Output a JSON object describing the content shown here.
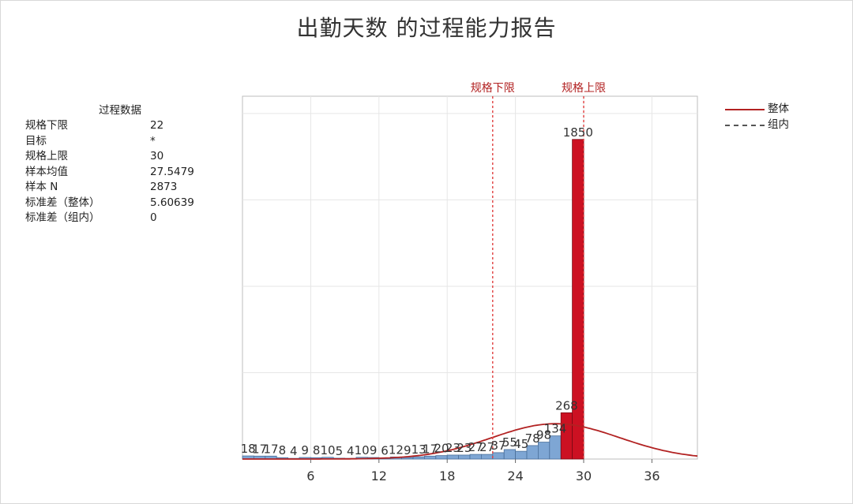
{
  "title": "出勤天数 的过程能力报告",
  "process_data": {
    "header": "过程数据",
    "rows": [
      {
        "label": "规格下限",
        "value": "22"
      },
      {
        "label": "目标",
        "value": "*"
      },
      {
        "label": "规格上限",
        "value": "30"
      },
      {
        "label": "样本均值",
        "value": "27.5479"
      },
      {
        "label": "样本 N",
        "value": "2873"
      },
      {
        "label": "标准差（整体）",
        "value": "5.60639"
      },
      {
        "label": "标准差（组内）",
        "value": "0"
      }
    ]
  },
  "legend": {
    "overall": "整体",
    "within": "组内"
  },
  "colors": {
    "in_spec_bar": "#7ea6d4",
    "out_spec_bar": "#cc1122",
    "curve": "#b22222",
    "spec_line": "#e04040",
    "spec_label": "#b22222"
  },
  "chart_data": {
    "type": "bar",
    "title": "出勤天数 的过程能力报告",
    "xlim": [
      0,
      40
    ],
    "ylim": [
      0,
      2100
    ],
    "xticks": [
      6,
      12,
      18,
      24,
      30,
      36
    ],
    "bin_width": 1,
    "spec_limits": {
      "lsl": {
        "value": 22,
        "label": "规格下限"
      },
      "usl": {
        "value": 30,
        "label": "规格上限"
      }
    },
    "bins": [
      {
        "x0": 0,
        "x1": 1,
        "value": 18,
        "label": "18"
      },
      {
        "x0": 1,
        "x1": 2,
        "value": 17,
        "label": "17"
      },
      {
        "x0": 2,
        "x1": 3,
        "value": 17,
        "label": "17"
      },
      {
        "x0": 3,
        "x1": 4,
        "value": 8,
        "label": "8"
      },
      {
        "x0": 4,
        "x1": 5,
        "value": 4,
        "label": "4"
      },
      {
        "x0": 5,
        "x1": 6,
        "value": 9,
        "label": "9"
      },
      {
        "x0": 6,
        "x1": 7,
        "value": 8,
        "label": "8"
      },
      {
        "x0": 7,
        "x1": 8,
        "value": 10,
        "label": "10"
      },
      {
        "x0": 8,
        "x1": 9,
        "value": 5,
        "label": "5"
      },
      {
        "x0": 9,
        "x1": 10,
        "value": 4,
        "label": "4"
      },
      {
        "x0": 10,
        "x1": 11,
        "value": 10,
        "label": "10"
      },
      {
        "x0": 11,
        "x1": 12,
        "value": 9,
        "label": "9"
      },
      {
        "x0": 12,
        "x1": 13,
        "value": 6,
        "label": "6"
      },
      {
        "x0": 13,
        "x1": 14,
        "value": 12,
        "label": "12"
      },
      {
        "x0": 14,
        "x1": 15,
        "value": 9,
        "label": "9"
      },
      {
        "x0": 15,
        "x1": 16,
        "value": 13,
        "label": "13"
      },
      {
        "x0": 16,
        "x1": 17,
        "value": 17,
        "label": "17"
      },
      {
        "x0": 17,
        "x1": 18,
        "value": 20,
        "label": "20"
      },
      {
        "x0": 18,
        "x1": 19,
        "value": 23,
        "label": "23"
      },
      {
        "x0": 19,
        "x1": 20,
        "value": 23,
        "label": "23"
      },
      {
        "x0": 20,
        "x1": 21,
        "value": 27,
        "label": "27"
      },
      {
        "x0": 21,
        "x1": 22,
        "value": 27,
        "label": "27"
      },
      {
        "x0": 22,
        "x1": 23,
        "value": 37,
        "label": "37"
      },
      {
        "x0": 23,
        "x1": 24,
        "value": 55,
        "label": "55"
      },
      {
        "x0": 24,
        "x1": 25,
        "value": 45,
        "label": "45"
      },
      {
        "x0": 25,
        "x1": 26,
        "value": 78,
        "label": "78"
      },
      {
        "x0": 26,
        "x1": 27,
        "value": 98,
        "label": "98"
      },
      {
        "x0": 27,
        "x1": 28,
        "value": 134,
        "label": "134"
      },
      {
        "x0": 28,
        "x1": 29,
        "value": 268,
        "label": "268"
      },
      {
        "x0": 29,
        "x1": 30,
        "value": 1850,
        "label": "1850"
      }
    ],
    "overall_curve": {
      "mean": 27.5479,
      "stdev": 5.60639,
      "n": 2873
    }
  }
}
